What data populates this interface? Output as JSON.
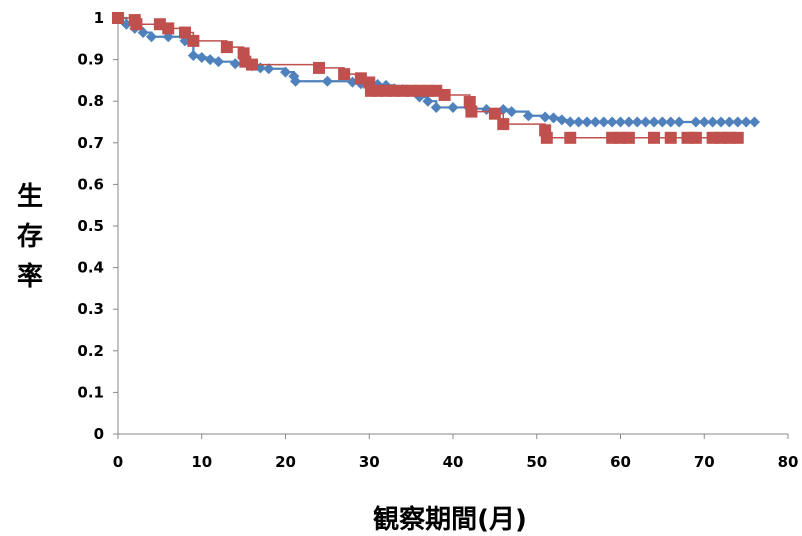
{
  "chart_data": {
    "type": "line",
    "title": "",
    "xlabel": "観察期間(月)",
    "ylabel": "生存率",
    "xlim": [
      0,
      80
    ],
    "ylim": [
      0,
      1
    ],
    "x_ticks": [
      0,
      10,
      20,
      30,
      40,
      50,
      60,
      70,
      80
    ],
    "y_ticks": [
      0,
      0.1,
      0.2,
      0.3,
      0.4,
      0.5,
      0.6,
      0.7,
      0.8,
      0.9,
      1
    ],
    "x_tick_labels": [
      "0",
      "10",
      "20",
      "30",
      "40",
      "50",
      "60",
      "70",
      "80"
    ],
    "y_tick_labels": [
      "0",
      "0.1",
      "0.2",
      "0.3",
      "0.4",
      "0.5",
      "0.6",
      "0.7",
      "0.8",
      "0.9",
      "1"
    ],
    "grid": false,
    "legend": "none",
    "series": [
      {
        "color": "#4f81bd",
        "marker": "diamond",
        "step": true,
        "points": [
          [
            0,
            1
          ],
          [
            1,
            0.985
          ],
          [
            2,
            0.975
          ],
          [
            3,
            0.965
          ],
          [
            4,
            0.955
          ],
          [
            6,
            0.955
          ],
          [
            8,
            0.945
          ],
          [
            9,
            0.91
          ],
          [
            10,
            0.905
          ],
          [
            11,
            0.9
          ],
          [
            12,
            0.895
          ],
          [
            14,
            0.89
          ],
          [
            16,
            0.885
          ],
          [
            17,
            0.88
          ],
          [
            18,
            0.878
          ],
          [
            20,
            0.87
          ],
          [
            21,
            0.86
          ],
          [
            21.2,
            0.848
          ],
          [
            25,
            0.848
          ],
          [
            28,
            0.846
          ],
          [
            29,
            0.842
          ],
          [
            31,
            0.84
          ],
          [
            32,
            0.838
          ],
          [
            33,
            0.83
          ],
          [
            34,
            0.828
          ],
          [
            35,
            0.826
          ],
          [
            36,
            0.81
          ],
          [
            37,
            0.8
          ],
          [
            38,
            0.785
          ],
          [
            40,
            0.785
          ],
          [
            42,
            0.782
          ],
          [
            44,
            0.78
          ],
          [
            46,
            0.78
          ],
          [
            47,
            0.775
          ],
          [
            49,
            0.765
          ],
          [
            51,
            0.762
          ],
          [
            52,
            0.76
          ],
          [
            53,
            0.755
          ],
          [
            54,
            0.75
          ],
          [
            55,
            0.75
          ],
          [
            56,
            0.75
          ],
          [
            57,
            0.75
          ],
          [
            58,
            0.75
          ],
          [
            59,
            0.75
          ],
          [
            60,
            0.75
          ],
          [
            61,
            0.75
          ],
          [
            62,
            0.75
          ],
          [
            63,
            0.75
          ],
          [
            64,
            0.75
          ],
          [
            65,
            0.75
          ],
          [
            66,
            0.75
          ],
          [
            67,
            0.75
          ],
          [
            69,
            0.75
          ],
          [
            70,
            0.75
          ],
          [
            71,
            0.75
          ],
          [
            72,
            0.75
          ],
          [
            73,
            0.75
          ],
          [
            74,
            0.75
          ],
          [
            75,
            0.75
          ],
          [
            76,
            0.75
          ]
        ]
      },
      {
        "color": "#c0504d",
        "marker": "square",
        "step": true,
        "points": [
          [
            0,
            1
          ],
          [
            2,
            0.995
          ],
          [
            2.2,
            0.985
          ],
          [
            5,
            0.985
          ],
          [
            6,
            0.975
          ],
          [
            8,
            0.965
          ],
          [
            9,
            0.945
          ],
          [
            13,
            0.93
          ],
          [
            15,
            0.915
          ],
          [
            15.2,
            0.895
          ],
          [
            16,
            0.888
          ],
          [
            24,
            0.88
          ],
          [
            27,
            0.865
          ],
          [
            29,
            0.855
          ],
          [
            30,
            0.845
          ],
          [
            30.2,
            0.825
          ],
          [
            31,
            0.825
          ],
          [
            32,
            0.825
          ],
          [
            33,
            0.825
          ],
          [
            34,
            0.825
          ],
          [
            35,
            0.825
          ],
          [
            36,
            0.825
          ],
          [
            37,
            0.825
          ],
          [
            38,
            0.825
          ],
          [
            39,
            0.815
          ],
          [
            42,
            0.798
          ],
          [
            42.2,
            0.775
          ],
          [
            45,
            0.77
          ],
          [
            46,
            0.745
          ],
          [
            51,
            0.73
          ],
          [
            51.2,
            0.712
          ],
          [
            54,
            0.712
          ],
          [
            59,
            0.712
          ],
          [
            60,
            0.712
          ],
          [
            61,
            0.712
          ],
          [
            64,
            0.712
          ],
          [
            66,
            0.712
          ],
          [
            68,
            0.712
          ],
          [
            69,
            0.712
          ],
          [
            71,
            0.712
          ],
          [
            72,
            0.712
          ],
          [
            73,
            0.712
          ],
          [
            74,
            0.712
          ]
        ]
      }
    ]
  }
}
